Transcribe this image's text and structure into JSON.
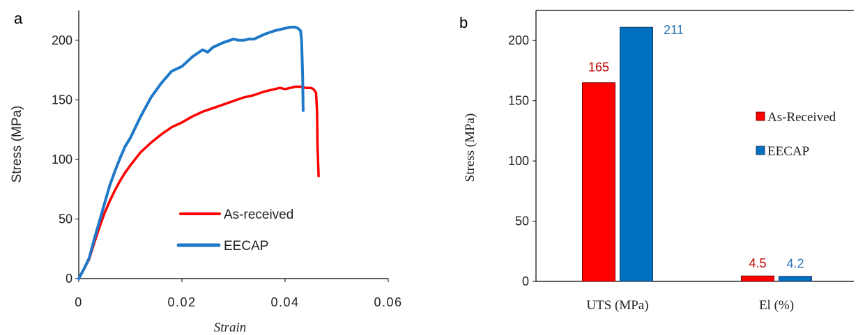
{
  "chart_data": [
    {
      "panel_label": "a",
      "type": "line",
      "xlabel": "Strain",
      "ylabel": "Stress (MPa)",
      "xlim": [
        0,
        0.06
      ],
      "ylim": [
        0,
        225
      ],
      "xticks": [
        0,
        0.02,
        0.04,
        0.06
      ],
      "xtick_labels": [
        "0",
        "0.02",
        "0.04",
        "0.06"
      ],
      "yticks": [
        0,
        50,
        100,
        150,
        200
      ],
      "ytick_labels": [
        "0",
        "50",
        "100",
        "150",
        "200"
      ],
      "legend_placement": "bottom-center",
      "grid": false,
      "series": [
        {
          "name": "As-received",
          "color": "#ff0000",
          "x": [
            0,
            0.001,
            0.002,
            0.003,
            0.004,
            0.005,
            0.006,
            0.007,
            0.008,
            0.009,
            0.01,
            0.012,
            0.014,
            0.016,
            0.018,
            0.02,
            0.022,
            0.024,
            0.026,
            0.028,
            0.03,
            0.032,
            0.034,
            0.036,
            0.038,
            0.039,
            0.04,
            0.041,
            0.042,
            0.043,
            0.044,
            0.045,
            0.0455,
            0.046,
            0.0462,
            0.0463,
            0.0465
          ],
          "y": [
            0,
            8,
            16,
            30,
            43,
            55,
            65,
            74,
            82,
            89,
            95,
            106,
            114,
            121,
            127,
            131,
            136,
            140,
            143,
            146,
            149,
            152,
            154,
            157,
            159,
            160,
            159,
            160,
            161,
            161,
            160,
            160,
            159,
            156,
            140,
            110,
            86
          ]
        },
        {
          "name": "EECAP",
          "color": "#1f78c8",
          "x": [
            0,
            0.001,
            0.002,
            0.003,
            0.004,
            0.005,
            0.006,
            0.007,
            0.008,
            0.009,
            0.01,
            0.012,
            0.014,
            0.016,
            0.018,
            0.019,
            0.02,
            0.022,
            0.024,
            0.025,
            0.026,
            0.028,
            0.03,
            0.031,
            0.032,
            0.033,
            0.034,
            0.036,
            0.038,
            0.04,
            0.041,
            0.042,
            0.0425,
            0.043,
            0.0432,
            0.0434,
            0.0435
          ],
          "y": [
            0,
            8,
            17,
            33,
            48,
            63,
            78,
            90,
            101,
            111,
            118,
            136,
            152,
            164,
            174,
            176,
            178,
            186,
            192,
            190,
            194,
            198,
            201,
            200,
            200,
            201,
            201,
            205,
            208,
            210,
            211,
            211,
            210,
            208,
            200,
            170,
            141
          ]
        }
      ]
    },
    {
      "panel_label": "b",
      "type": "bar",
      "ylabel": "Stress (MPa)",
      "ylim": [
        0,
        225
      ],
      "yticks": [
        0,
        50,
        100,
        150,
        200
      ],
      "ytick_labels": [
        "0",
        "50",
        "100",
        "150",
        "200"
      ],
      "categories": [
        "UTS (MPa)",
        "El (%)"
      ],
      "legend_placement": "right",
      "grid": false,
      "series": [
        {
          "name": "As-Received",
          "color": "#ff0000",
          "label_color": "#c00000",
          "values": [
            165,
            4.5
          ],
          "labels": [
            "165",
            "4.5"
          ]
        },
        {
          "name": "EECAP",
          "color": "#0070c0",
          "label_color": "#2e75b6",
          "values": [
            211,
            4.2
          ],
          "labels": [
            "211",
            "4.2"
          ]
        }
      ]
    }
  ]
}
